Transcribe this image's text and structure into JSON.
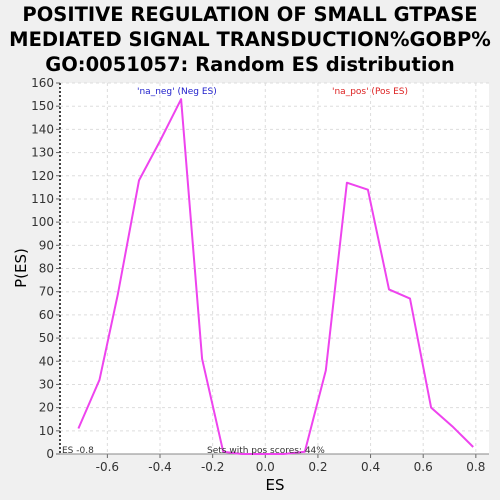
{
  "chart_data": {
    "type": "line",
    "title": [
      "POSITIVE REGULATION OF SMALL GTPASE",
      "MEDIATED SIGNAL TRANSDUCTION%GOBP%",
      "GO:0051057: Random ES distribution"
    ],
    "xlabel": "ES",
    "ylabel": "P(ES)",
    "xlim": [
      -0.78,
      0.85
    ],
    "ylim": [
      0,
      160
    ],
    "x_ticks": [
      -0.6,
      -0.4,
      -0.2,
      0.0,
      0.2,
      0.4,
      0.6,
      0.8
    ],
    "x_tick_labels": [
      "-0.6",
      "-0.4",
      "-0.2",
      "0.0",
      "0.2",
      "0.4",
      "0.6",
      "0.8"
    ],
    "y_ticks": [
      0,
      10,
      20,
      30,
      40,
      50,
      60,
      70,
      80,
      90,
      100,
      110,
      120,
      130,
      140,
      150,
      160
    ],
    "grid": true,
    "series": [
      {
        "color": "#ee44ee",
        "x": [
          -0.71,
          -0.63,
          -0.56,
          -0.48,
          -0.4,
          -0.32,
          -0.24,
          -0.16,
          -0.09,
          -0.01,
          0.07,
          0.15,
          0.23,
          0.31,
          0.39,
          0.47,
          0.55,
          0.63,
          0.71,
          0.79
        ],
        "y": [
          11,
          32,
          69,
          118,
          135,
          153,
          41,
          1,
          0,
          0,
          0,
          1,
          36,
          117,
          114,
          71,
          67,
          20,
          12,
          3
        ]
      }
    ],
    "annotations": {
      "neg_label": "'na_neg' (Neg ES)",
      "pos_label": "'na_pos' (Pos ES)",
      "es_marker": "ES -0.8",
      "pos_scores": "Sets with pos scores: 44%"
    },
    "colors": {
      "neg_label": "#2222cc",
      "pos_label": "#dd2222",
      "line": "#ee44ee",
      "grid": "#dddddd",
      "plot_bg": "#ffffff"
    }
  }
}
